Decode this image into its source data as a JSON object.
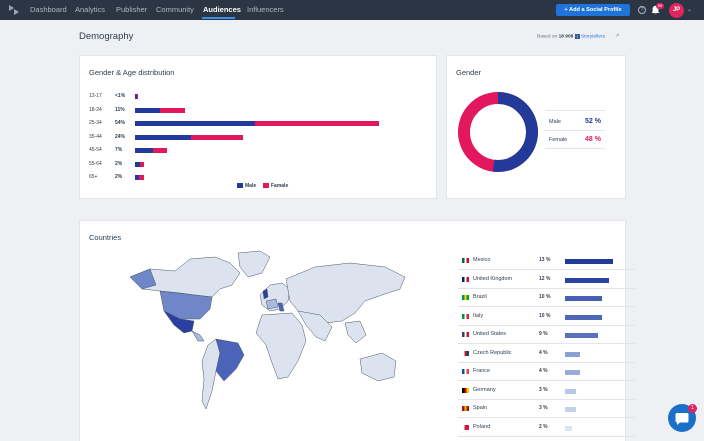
{
  "nav": {
    "items": [
      "Dashboard",
      "Analytics",
      "Publisher",
      "Community",
      "Audiences",
      "Influencers"
    ],
    "active": "Audiences",
    "add_button": "+ Add a Social Profile",
    "notification_count": "99",
    "avatar_initials": "JP"
  },
  "page": {
    "title": "Demography",
    "based_on_prefix": "Based on",
    "based_on_count": "18 908",
    "based_on_source": "Storytellers"
  },
  "age_card": {
    "title": "Gender & Age distribution",
    "rows": [
      {
        "range": "13-17",
        "pct": "<1%",
        "male": 0.4,
        "female": 0.2
      },
      {
        "range": "18-24",
        "pct": "11%",
        "male": 5.5,
        "female": 5.5
      },
      {
        "range": "25-34",
        "pct": "54%",
        "male": 26.5,
        "female": 27.5
      },
      {
        "range": "35-44",
        "pct": "24%",
        "male": 12.5,
        "female": 11.5
      },
      {
        "range": "45-54",
        "pct": "7%",
        "male": 4,
        "female": 3
      },
      {
        "range": "55-64",
        "pct": "2%",
        "male": 1,
        "female": 1
      },
      {
        "range": "65+",
        "pct": "2%",
        "male": 0.8,
        "female": 1.2
      }
    ],
    "legend_male": "Male",
    "legend_female": "Famale",
    "male_color": "#223a9a",
    "female_color": "#e3175d"
  },
  "gender_card": {
    "title": "Gender",
    "male_label": "Male",
    "male_pct": "52 %",
    "female_label": "Female",
    "female_pct": "48 %",
    "male_share": 0.52
  },
  "countries_card": {
    "title": "Countries",
    "rows": [
      {
        "name": "Mexico",
        "pct": "13 %",
        "value": 13,
        "flag": "mexico-flag"
      },
      {
        "name": "United Kingdom",
        "pct": "12 %",
        "value": 12,
        "flag": "uk-flag"
      },
      {
        "name": "Brazil",
        "pct": "10 %",
        "value": 10,
        "flag": "brazil-flag"
      },
      {
        "name": "Italy",
        "pct": "10 %",
        "value": 10,
        "flag": "italy-flag"
      },
      {
        "name": "United States",
        "pct": "9 %",
        "value": 9,
        "flag": "us-flag"
      },
      {
        "name": "Czech Republic",
        "pct": "4 %",
        "value": 4,
        "flag": "czech-flag"
      },
      {
        "name": "France",
        "pct": "4 %",
        "value": 4,
        "flag": "france-flag"
      },
      {
        "name": "Germany",
        "pct": "3 %",
        "value": 3,
        "flag": "germany-flag"
      },
      {
        "name": "Spain",
        "pct": "3 %",
        "value": 3,
        "flag": "spain-flag"
      },
      {
        "name": "Poland",
        "pct": "2 %",
        "value": 2,
        "flag": "poland-flag"
      }
    ]
  },
  "chat": {
    "badge": "1"
  }
}
